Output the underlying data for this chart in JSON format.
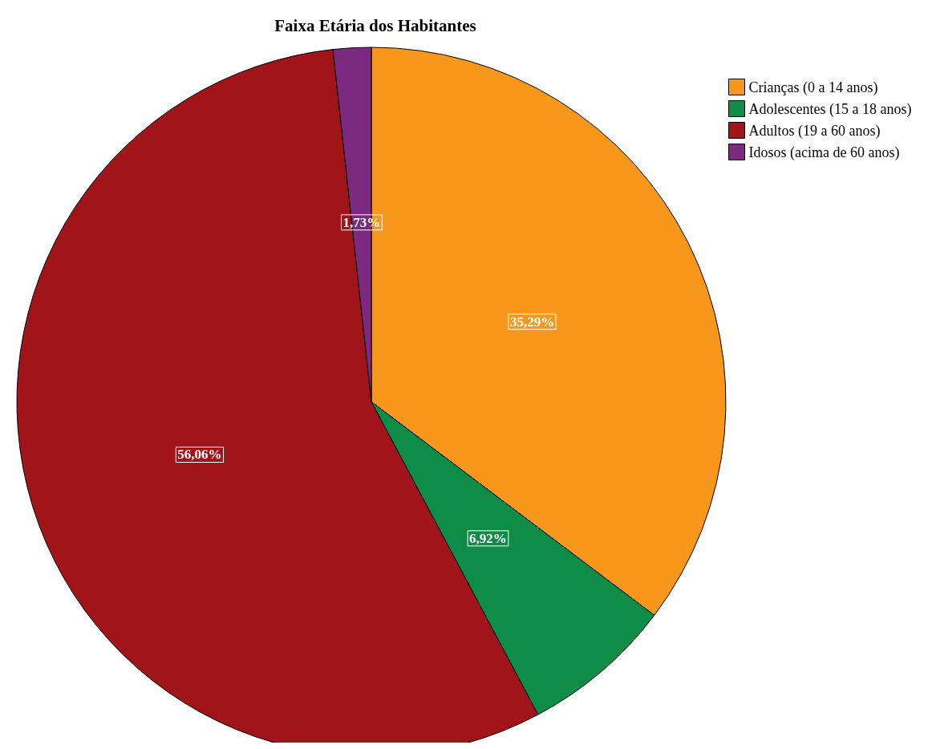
{
  "chart_data": {
    "type": "pie",
    "title": "Faixa Etária dos Habitantes",
    "categories": [
      "Crianças (0 a 14 anos)",
      "Adolescentes (15 a 18 anos)",
      "Adultos (19 a 60 anos)",
      "Idosos (acima de 60 anos)"
    ],
    "values": [
      35.29,
      6.92,
      56.06,
      1.73
    ],
    "colors": [
      "#f7981d",
      "#0f8c46",
      "#a0141a",
      "#7b2a7f"
    ],
    "value_labels": [
      "35,29%",
      "6,92%",
      "56,06%",
      "1,73%"
    ],
    "legend": "top right"
  }
}
